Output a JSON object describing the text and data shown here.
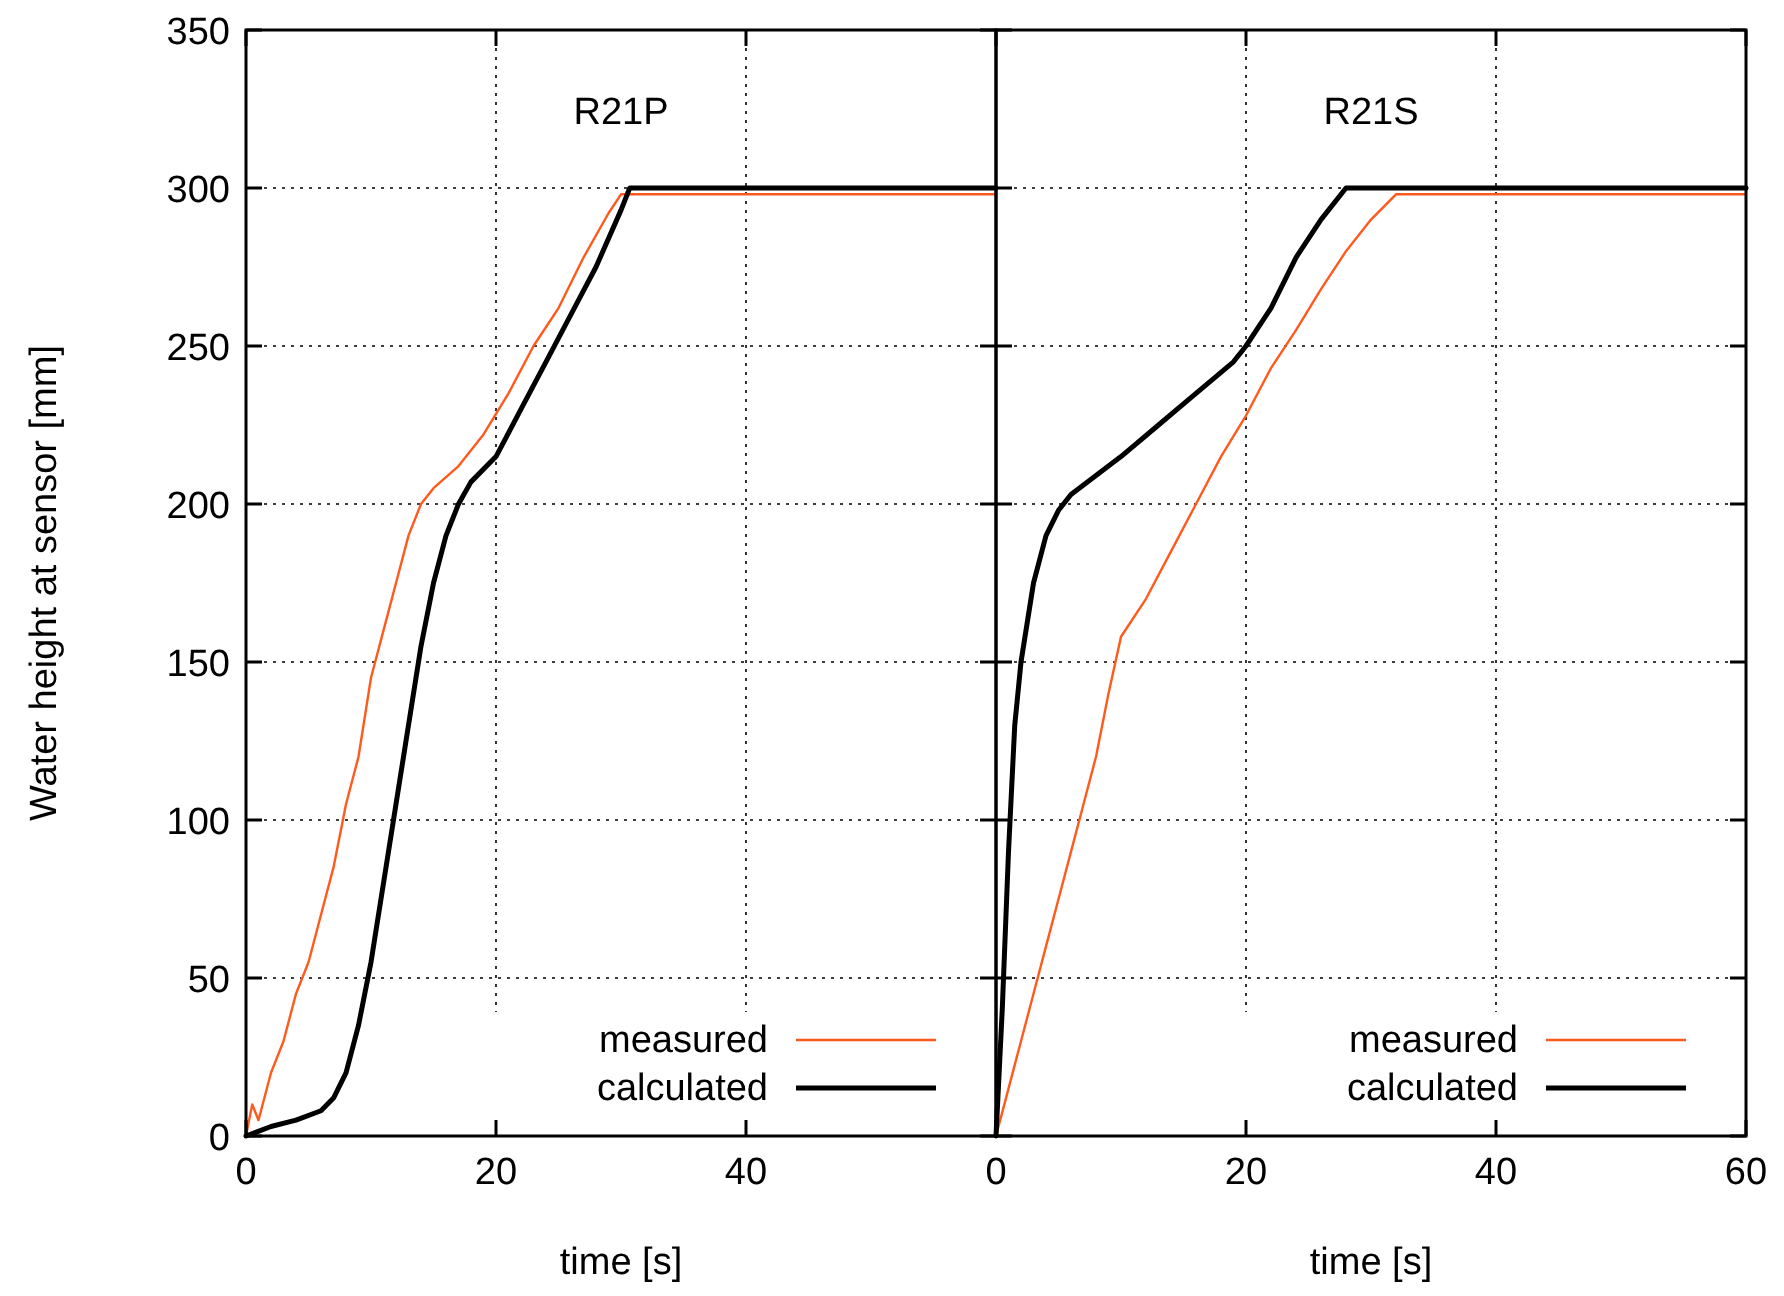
{
  "chart_data": [
    {
      "type": "line",
      "title": "R21P",
      "xlabel": "time [s]",
      "ylabel": "Water height at sensor [mm]",
      "xlim": [
        0,
        60
      ],
      "xticks": [
        0,
        20,
        40
      ],
      "ylim": [
        0,
        350
      ],
      "yticks": [
        0,
        50,
        100,
        150,
        200,
        250,
        300,
        350
      ],
      "grid": true,
      "legend": "bottom right",
      "series": [
        {
          "name": "measured",
          "color": "#ff5a1e",
          "x": [
            0,
            0.5,
            1,
            2,
            3,
            4,
            5,
            6,
            7,
            8,
            9,
            10,
            11,
            12,
            13,
            14,
            15,
            17,
            19,
            21,
            23,
            25,
            27,
            29,
            30,
            60
          ],
          "values": [
            0,
            10,
            5,
            20,
            30,
            45,
            55,
            70,
            85,
            105,
            120,
            145,
            160,
            175,
            190,
            200,
            205,
            212,
            222,
            235,
            250,
            262,
            278,
            292,
            298,
            298
          ]
        },
        {
          "name": "calculated",
          "color": "#000000",
          "x": [
            0,
            2,
            4,
            6,
            7,
            8,
            9,
            10,
            11,
            12,
            13,
            14,
            15,
            16,
            17,
            18,
            20,
            22,
            24,
            26,
            28,
            30,
            30.7,
            60
          ],
          "values": [
            0,
            3,
            5,
            8,
            12,
            20,
            35,
            55,
            80,
            105,
            130,
            155,
            175,
            190,
            200,
            207,
            215,
            230,
            245,
            260,
            275,
            293,
            300,
            300
          ]
        }
      ]
    },
    {
      "type": "line",
      "title": "R21S",
      "xlabel": "time [s]",
      "xlim": [
        0,
        60
      ],
      "xticks": [
        0,
        20,
        40,
        60
      ],
      "ylim": [
        0,
        350
      ],
      "yticks": [
        0,
        50,
        100,
        150,
        200,
        250,
        300,
        350
      ],
      "grid": true,
      "legend": "bottom right",
      "tick_labels": "x",
      "series": [
        {
          "name": "measured",
          "color": "#ff5a1e",
          "x": [
            0,
            1,
            2,
            3,
            4,
            5,
            6,
            7,
            8,
            9,
            10,
            12,
            14,
            16,
            18,
            20,
            22,
            24,
            26,
            28,
            30,
            32,
            60
          ],
          "values": [
            0,
            15,
            30,
            45,
            60,
            75,
            90,
            105,
            120,
            140,
            158,
            170,
            185,
            200,
            215,
            228,
            243,
            255,
            268,
            280,
            290,
            298,
            298
          ]
        },
        {
          "name": "calculated",
          "color": "#000000",
          "x": [
            0,
            0.5,
            1,
            1.5,
            2,
            3,
            4,
            5,
            6,
            7,
            10,
            13,
            16,
            19,
            20,
            22,
            24,
            26,
            28,
            60
          ],
          "values": [
            0,
            40,
            90,
            130,
            150,
            175,
            190,
            198,
            203,
            206,
            215,
            225,
            235,
            245,
            250,
            262,
            278,
            290,
            300,
            300
          ]
        }
      ]
    }
  ]
}
